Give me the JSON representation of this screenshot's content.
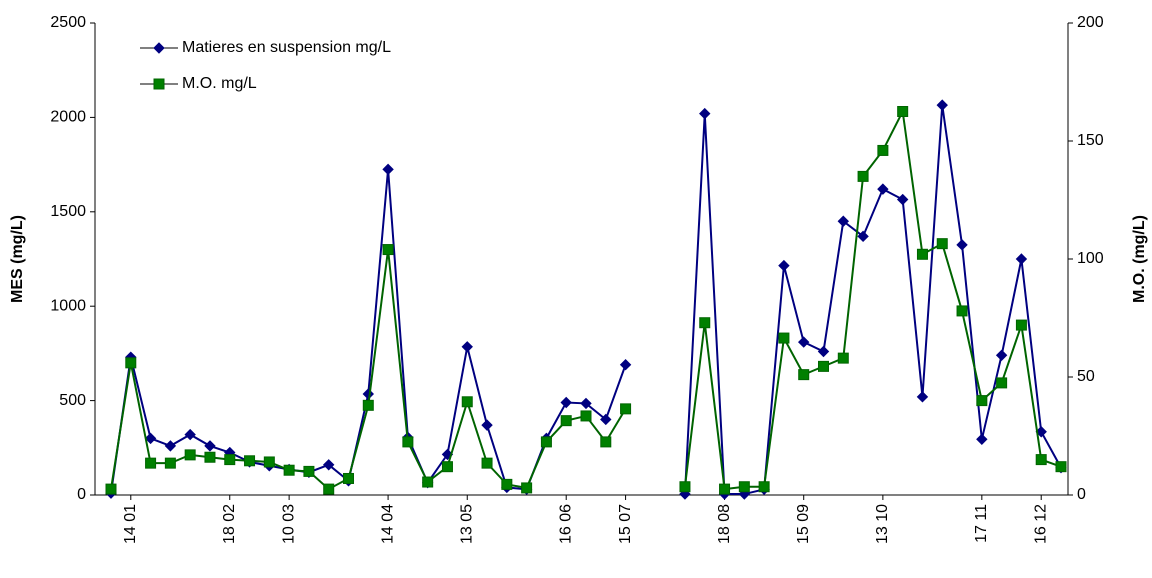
{
  "chart_data": {
    "type": "line",
    "categories": [
      null,
      "14 01",
      null,
      null,
      null,
      null,
      "18 02",
      null,
      null,
      "10 03",
      null,
      null,
      null,
      null,
      "14 04",
      null,
      null,
      null,
      "13 05",
      null,
      null,
      null,
      null,
      "16 06",
      null,
      null,
      "15 07",
      null,
      null,
      null,
      null,
      "18 08",
      null,
      null,
      null,
      "15 09",
      null,
      null,
      null,
      "13 10",
      null,
      null,
      null,
      null,
      "17 11",
      null,
      null,
      "16 12",
      null
    ],
    "series": [
      {
        "name": "Matieres en suspension mg/L",
        "color": "#000080",
        "marker": "diamond",
        "values": [
          10,
          730,
          300,
          260,
          320,
          260,
          225,
          175,
          155,
          135,
          120,
          160,
          75,
          535,
          1725,
          305,
          65,
          215,
          785,
          370,
          40,
          30,
          300,
          490,
          485,
          400,
          690,
          null,
          null,
          5,
          2020,
          5,
          5,
          30,
          1215,
          810,
          760,
          1450,
          1370,
          1620,
          1565,
          520,
          2065,
          1325,
          295,
          740,
          1250,
          335,
          145
        ]
      },
      {
        "name": "M.O. mg/L",
        "color": "#006400",
        "marker": "square",
        "axis": "y2",
        "values": [
          2.5,
          56,
          13.5,
          13.5,
          17,
          16,
          15,
          14.5,
          14,
          10.5,
          10,
          2.5,
          7,
          38,
          104,
          22.5,
          5.5,
          12,
          39.5,
          13.5,
          4.5,
          3,
          22.5,
          31.5,
          33.5,
          22.5,
          36.5,
          null,
          null,
          3.5,
          73,
          2.5,
          3.5,
          3.5,
          66.5,
          51,
          54.5,
          58,
          135,
          146,
          162.5,
          102,
          106.5,
          78,
          40,
          47.5,
          72,
          15,
          12
        ]
      }
    ],
    "y_label": "MES (mg/L)",
    "y2_label": "M.O. (mg/L)",
    "ylim": [
      0,
      2500
    ],
    "yticks": [
      0,
      500,
      1000,
      1500,
      2000,
      2500
    ],
    "y2lim": [
      0,
      200
    ],
    "y2ticks": [
      0,
      50,
      100,
      150,
      200
    ],
    "grid": false,
    "legend": "upper left"
  }
}
